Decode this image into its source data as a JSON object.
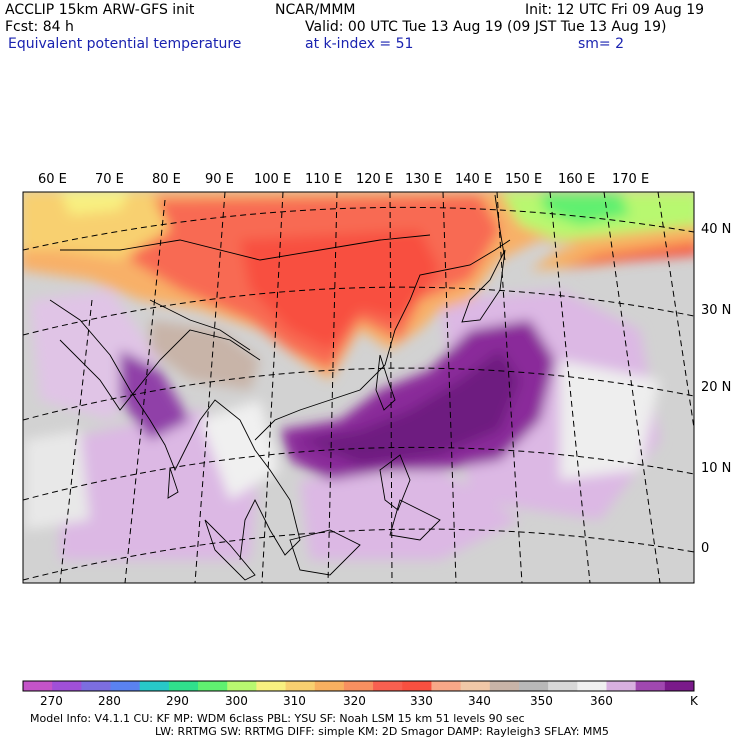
{
  "header": {
    "line1_left": "ACCLIP 15km ARW-GFS init",
    "line1_mid": "NCAR/MMM",
    "line1_right": "Init: 12 UTC Fri 09 Aug 19",
    "line2_left": "Fcst:   84 h",
    "line2_right": "Valid: 00 UTC Tue 13 Aug 19 (09 JST Tue 13 Aug 19)",
    "line3_left": "Equivalent potential temperature",
    "line3_mid": "at k-index =  51",
    "line3_right": "sm= 2"
  },
  "map": {
    "lon_labels": [
      "60 E",
      "70 E",
      "80 E",
      "90 E",
      "100 E",
      "110 E",
      "120 E",
      "130 E",
      "140 E",
      "150 E",
      "160 E",
      "170 E"
    ],
    "lat_labels": [
      "40 N",
      "30 N",
      "20 N",
      "10 N",
      "0"
    ]
  },
  "colorbar": {
    "colors": [
      "#c454c8",
      "#a050d8",
      "#7c6ee0",
      "#5a82f0",
      "#28c8c8",
      "#30e08c",
      "#60f070",
      "#b8f870",
      "#f8f080",
      "#f8d070",
      "#f8b060",
      "#f89060",
      "#f86050",
      "#f85040",
      "#f8a888",
      "#f0c8a8",
      "#c8b4a8",
      "#b8b8b8",
      "#d8d8d8",
      "#f0f0f0",
      "#d8b0e0",
      "#a048b0",
      "#7a1a8a"
    ],
    "labels": [
      "270",
      "280",
      "290",
      "300",
      "310",
      "320",
      "330",
      "340",
      "350",
      "360"
    ],
    "unit": "K"
  },
  "footer": {
    "line1": "Model Info: V4.1.1     CU: KF       MP: WDM 6class   PBL: YSU        SF: Noah LSM     15 km    51 levels    90 sec",
    "line2": "LW: RRTMG     SW: RRTMG   DIFF: simple KM: 2D Smagor DAMP: Rayleigh3  SFLAY: MM5"
  }
}
